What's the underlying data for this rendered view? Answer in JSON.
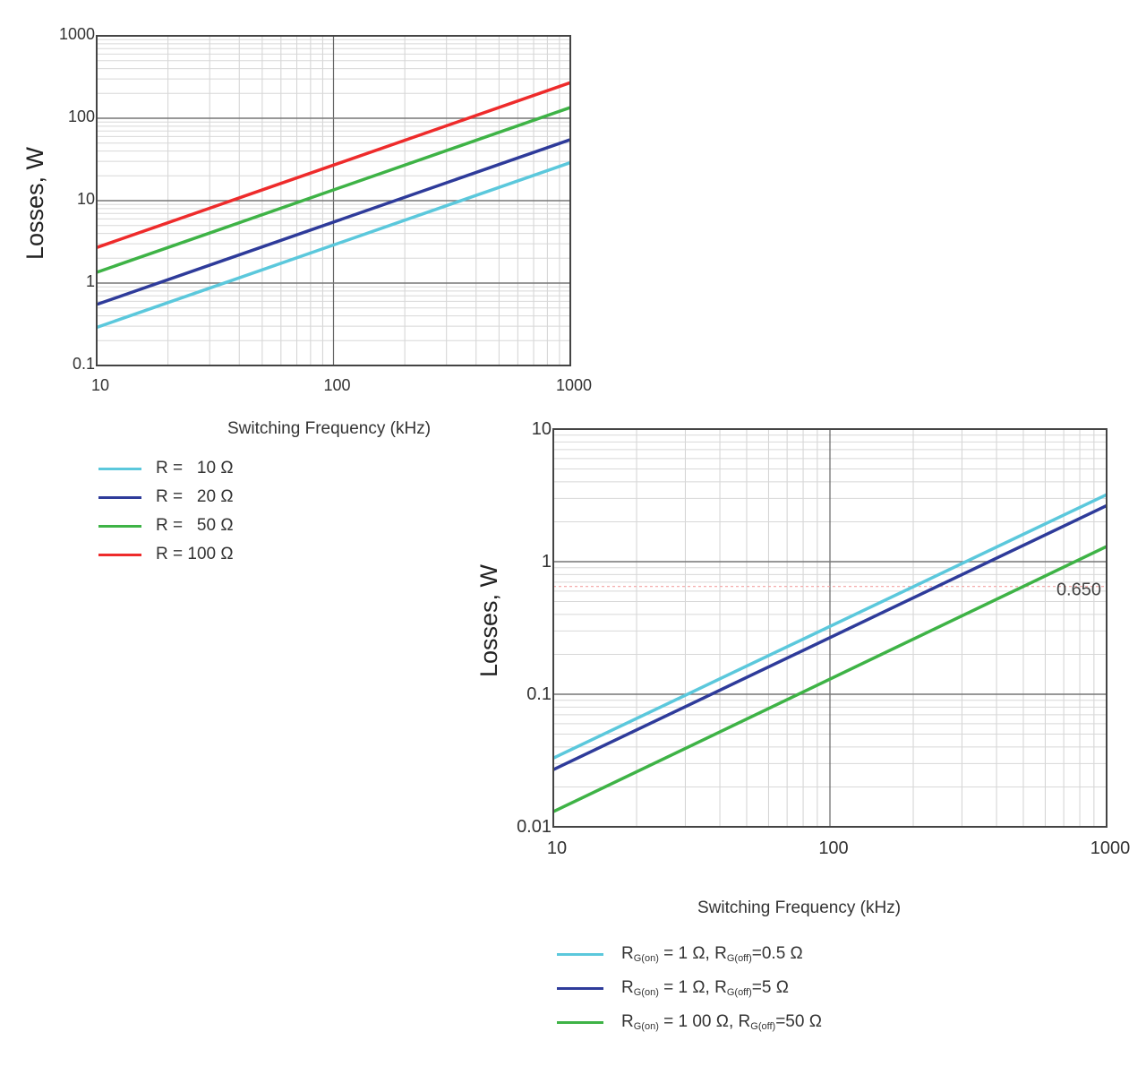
{
  "chart_data": [
    {
      "type": "line",
      "xscale": "log",
      "yscale": "log",
      "xlim": [
        10,
        1000
      ],
      "ylim": [
        0.1,
        1000
      ],
      "xticks": [
        "10",
        "100",
        "1000"
      ],
      "yticks": [
        "0.1",
        "1",
        "10",
        "100",
        "1000"
      ],
      "xlabel": "Switching Frequency (kHz)",
      "ylabel": "Losses, W",
      "grid": true,
      "legend_position": "below-left",
      "series": [
        {
          "name": "R =   10 Ω",
          "color": "#5bc8dc",
          "x": [
            10,
            1000
          ],
          "y": [
            0.29,
            29
          ]
        },
        {
          "name": "R =   20 Ω",
          "color": "#2e3b9a",
          "x": [
            10,
            1000
          ],
          "y": [
            0.55,
            55
          ]
        },
        {
          "name": "R =   50 Ω",
          "color": "#3eb346",
          "x": [
            10,
            1000
          ],
          "y": [
            1.35,
            135
          ]
        },
        {
          "name": "R = 100 Ω",
          "color": "#ee2b2b",
          "x": [
            10,
            1000
          ],
          "y": [
            2.7,
            270
          ]
        }
      ]
    },
    {
      "type": "line",
      "xscale": "log",
      "yscale": "log",
      "xlim": [
        10,
        1000
      ],
      "ylim": [
        0.01,
        10
      ],
      "xticks": [
        "10",
        "100",
        "1000"
      ],
      "yticks": [
        "0.01",
        "0.1",
        "1",
        "10"
      ],
      "xlabel": "Switching Frequency (kHz)",
      "ylabel": "Losses, W",
      "grid": true,
      "legend_position": "below-left",
      "reference_line": {
        "y": 0.65,
        "label": "0.650",
        "color": "#f2a3a3"
      },
      "series": [
        {
          "name": "RG(on) = 1 Ω, RG(off)=0.5 Ω",
          "name_parts": [
            "R",
            "G(on)",
            " = 1 Ω, R",
            "G(off)",
            "=0.5 Ω"
          ],
          "color": "#5bc8dc",
          "x": [
            10,
            1000
          ],
          "y": [
            0.033,
            3.2
          ]
        },
        {
          "name": "RG(on) = 1 Ω, RG(off)=5 Ω",
          "name_parts": [
            "R",
            "G(on)",
            " = 1 Ω, R",
            "G(off)",
            "=5 Ω"
          ],
          "color": "#2e3b9a",
          "x": [
            10,
            1000
          ],
          "y": [
            0.027,
            2.65
          ]
        },
        {
          "name": "RG(on) = 1 00 Ω, RG(off)=50 Ω",
          "name_parts": [
            "R",
            "G(on)",
            " = 1 00 Ω, R",
            "G(off)",
            "=50 Ω"
          ],
          "color": "#3eb346",
          "x": [
            10,
            1000
          ],
          "y": [
            0.013,
            1.3
          ]
        }
      ]
    }
  ]
}
